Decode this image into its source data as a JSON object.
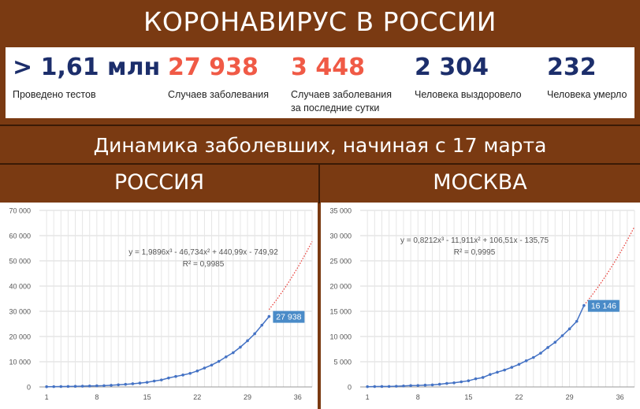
{
  "header": {
    "title": "КОРОНАВИРУС В РОССИИ"
  },
  "stats": [
    {
      "value": "> 1,61 млн",
      "label": "Проведено тестов",
      "color": "#1c2e6b"
    },
    {
      "value": "27 938",
      "label": "Случаев заболевания",
      "color": "#f05a46"
    },
    {
      "value": "3 448",
      "label": "Случаев заболевания",
      "label2": "за последние сутки",
      "color": "#f05a46"
    },
    {
      "value": "2 304",
      "label": "Человека выздоровело",
      "color": "#1c2e6b"
    },
    {
      "value": "232",
      "label": "Человека умерло",
      "color": "#1c2e6b"
    }
  ],
  "subtitle": "Динамика заболевших, начиная с 17 марта",
  "regions": {
    "left": "РОССИЯ",
    "right": "МОСКВА"
  },
  "chart_data": [
    {
      "type": "scatter",
      "region": "РОССИЯ",
      "xticks": [
        "1",
        "8",
        "15",
        "22",
        "29",
        "36"
      ],
      "yticks": [
        "0",
        "10 000",
        "20 000",
        "30 000",
        "40 000",
        "50 000",
        "60 000",
        "70 000"
      ],
      "xlim": [
        0,
        38
      ],
      "ylim": [
        0,
        70000
      ],
      "x": [
        1,
        2,
        3,
        4,
        5,
        6,
        7,
        8,
        9,
        10,
        11,
        12,
        13,
        14,
        15,
        16,
        17,
        18,
        19,
        20,
        21,
        22,
        23,
        24,
        25,
        26,
        27,
        28,
        29,
        30,
        31
      ],
      "y": [
        93,
        114,
        147,
        199,
        253,
        306,
        367,
        438,
        495,
        658,
        840,
        1036,
        1264,
        1534,
        1836,
        2337,
        2777,
        3548,
        4149,
        4731,
        5389,
        6343,
        7497,
        8672,
        10131,
        11917,
        13584,
        15770,
        18328,
        21102,
        24490
      ],
      "last_point": {
        "x": 32,
        "y": 27938,
        "label": "27 938"
      },
      "trendline": {
        "type": "polynomial-3",
        "equation": "y = 1,9896x³ - 46,734x² + 440,99x - 749,92",
        "r2": "R² = 0,9985",
        "a": 1.9896,
        "b": -46.734,
        "c": 440.99,
        "d": -749.92,
        "x_end": 38
      },
      "grid": true,
      "colors": {
        "points": "#4472c4",
        "trend": "#e8413c",
        "label_bg": "#4a8bc8"
      }
    },
    {
      "type": "scatter",
      "region": "МОСКВА",
      "xticks": [
        "1",
        "8",
        "15",
        "22",
        "29",
        "36"
      ],
      "yticks": [
        "0",
        "5 000",
        "10 000",
        "15 000",
        "20 000",
        "25 000",
        "30 000",
        "35 000"
      ],
      "xlim": [
        0,
        38
      ],
      "ylim": [
        0,
        35000
      ],
      "x": [
        1,
        2,
        3,
        4,
        5,
        6,
        7,
        8,
        9,
        10,
        11,
        12,
        13,
        14,
        15,
        16,
        17,
        18,
        19,
        20,
        21,
        22,
        23,
        24,
        25,
        26,
        27,
        28,
        29,
        30
      ],
      "y": [
        53,
        71,
        86,
        98,
        137,
        191,
        262,
        290,
        356,
        410,
        536,
        703,
        817,
        1014,
        1226,
        1613,
        1880,
        2475,
        2923,
        3357,
        3893,
        4484,
        5181,
        5841,
        6698,
        7822,
        8852,
        10158,
        11513,
        13002
      ],
      "last_point": {
        "x": 31,
        "y": 16146,
        "label": "16 146"
      },
      "trendline": {
        "type": "polynomial-3",
        "equation": "y = 0,8212x³ - 11,911x² + 106,51x - 135,75",
        "r2": "R² = 0,9995",
        "a": 0.8212,
        "b": -11.911,
        "c": 106.51,
        "d": -135.75,
        "x_end": 38
      },
      "grid": true,
      "colors": {
        "points": "#4472c4",
        "trend": "#e8413c",
        "label_bg": "#4a8bc8"
      }
    }
  ]
}
